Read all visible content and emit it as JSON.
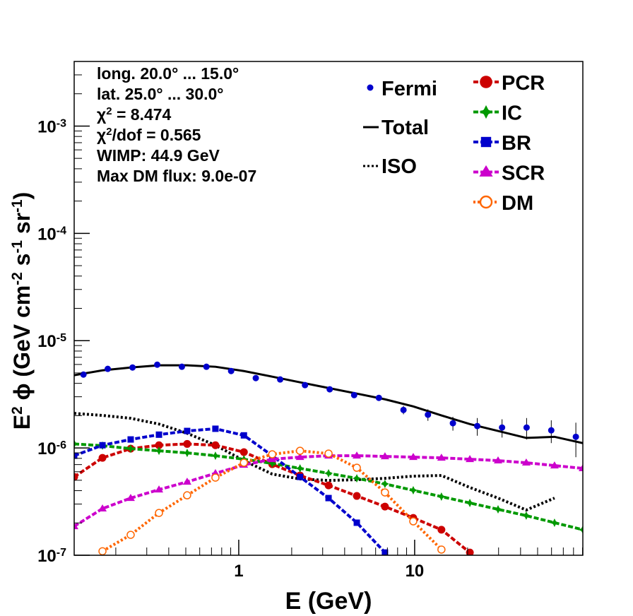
{
  "chart_data": {
    "type": "line",
    "xlabel": "E (GeV)",
    "ylabel": [
      {
        "text": "E"
      },
      {
        "text": "2",
        "sup": true
      },
      {
        "text": " ϕ (GeV cm"
      },
      {
        "text": "-2",
        "sup": true
      },
      {
        "text": " s"
      },
      {
        "text": "-1",
        "sup": true
      },
      {
        "text": " sr"
      },
      {
        "text": "-1",
        "sup": true
      },
      {
        "text": ")"
      }
    ],
    "annotations": [
      [
        {
          "text": "long. 20.0° ... 15.0°"
        }
      ],
      [
        {
          "text": "lat. 25.0° ... 30.0°"
        }
      ],
      [
        {
          "text": "χ"
        },
        {
          "text": "2",
          "sup": true
        },
        {
          "text": " = 8.474"
        }
      ],
      [
        {
          "text": "χ"
        },
        {
          "text": "2",
          "sup": true
        },
        {
          "text": "/dof = 0.565"
        }
      ],
      [
        {
          "text": "WIMP: 44.9 GeV"
        }
      ],
      [
        {
          "text": "Max DM flux: 9.0e-07"
        }
      ]
    ],
    "xlog": true,
    "ylog": true,
    "xlim": [
      0.116,
      90.4
    ],
    "ylim": [
      1e-07,
      0.004
    ],
    "xticks": [
      1,
      10
    ],
    "yticks": [
      {
        "value": 1e-07,
        "label": "10",
        "exponent": "-7"
      },
      {
        "value": 1e-06,
        "label": "10",
        "exponent": "-6"
      },
      {
        "value": 1e-05,
        "label": "10",
        "exponent": "-5"
      },
      {
        "value": 0.0001,
        "label": "10",
        "exponent": "-4"
      },
      {
        "value": 0.001,
        "label": "10",
        "exponent": "-3"
      }
    ],
    "fermi": {
      "name": "Fermi",
      "color": "#0000cc",
      "x": [
        0.131,
        0.18,
        0.249,
        0.344,
        0.475,
        0.655,
        0.905,
        1.25,
        1.72,
        2.38,
        3.29,
        4.53,
        6.26,
        8.64,
        11.9,
        16.5,
        22.7,
        31.4,
        43.3,
        59.8,
        82.5
      ],
      "values": [
        4.83e-06,
        5.46e-06,
        5.62e-06,
        5.97e-06,
        5.71e-06,
        5.71e-06,
        5.21e-06,
        4.48e-06,
        4.35e-06,
        3.85e-06,
        3.52e-06,
        3.11e-06,
        2.93e-06,
        2.26e-06,
        2.04e-06,
        1.7e-06,
        1.6e-06,
        1.55e-06,
        1.55e-06,
        1.46e-06,
        1.27e-06
      ],
      "errors": [
        1e-07,
        1e-07,
        1e-07,
        1e-07,
        1e-07,
        1e-07,
        1e-07,
        1e-07,
        1e-07,
        1e-07,
        1e-07,
        1e-07,
        1.5e-07,
        2e-07,
        2.5e-07,
        2.5e-07,
        3e-07,
        3e-07,
        3.5e-07,
        3.5e-07,
        4.5e-07
      ]
    },
    "x": [
      0.116,
      0.168,
      0.243,
      0.352,
      0.509,
      0.737,
      1.07,
      1.55,
      2.23,
      3.24,
      4.69,
      6.78,
      9.82,
      14.2,
      20.6,
      29.8,
      43.1,
      62.4,
      90.4
    ],
    "series": [
      {
        "name": "Total",
        "color": "#000000",
        "dash": "solid",
        "values": [
          4.76e-06,
          5.29e-06,
          5.62e-06,
          5.89e-06,
          5.89e-06,
          5.71e-06,
          5.21e-06,
          4.62e-06,
          4.09e-06,
          3.62e-06,
          3.21e-06,
          2.84e-06,
          2.44e-06,
          2.01e-06,
          1.67e-06,
          1.44e-06,
          1.24e-06,
          1.27e-06,
          1.11e-06
        ]
      },
      {
        "name": "ISO",
        "color": "#000000",
        "dash": "dotted",
        "values": [
          2.1e-06,
          2.01e-06,
          1.89e-06,
          1.67e-06,
          1.37e-06,
          1.06e-06,
          7.62e-07,
          5.71e-07,
          5.14e-07,
          4.98e-07,
          5.06e-07,
          5.21e-07,
          5.46e-07,
          5.54e-07,
          4.28e-07,
          3.41e-07,
          2.64e-07,
          3.41e-07,
          null
        ]
      },
      {
        "name": "PCR",
        "color": "#cc0000",
        "dash": "dashed",
        "marker": "circle",
        "values": [
          5.37e-07,
          8.09e-07,
          9.85e-07,
          1.06e-06,
          1.09e-06,
          1.06e-06,
          9.14e-07,
          7.06e-07,
          5.54e-07,
          4.48e-07,
          3.57e-07,
          2.84e-07,
          2.23e-07,
          1.73e-07,
          1.06e-07,
          null,
          null,
          null,
          null
        ]
      },
      {
        "name": "IC",
        "color": "#009900",
        "dash": "dashed",
        "marker": "star",
        "values": [
          1.09e-06,
          1.05e-06,
          9.85e-07,
          9.41e-07,
          8.99e-07,
          8.47e-07,
          7.85e-07,
          7.17e-07,
          6.45e-07,
          5.8e-07,
          5.21e-07,
          4.62e-07,
          4.03e-07,
          3.52e-07,
          3.07e-07,
          2.68e-07,
          2.34e-07,
          2.01e-07,
          1.73e-07
        ]
      },
      {
        "name": "BR",
        "color": "#0000cc",
        "dash": "dashed",
        "marker": "square",
        "values": [
          8.47e-07,
          1.06e-06,
          1.2e-06,
          1.33e-06,
          1.44e-06,
          1.51e-06,
          1.31e-06,
          8.47e-07,
          5.37e-07,
          3.41e-07,
          2.01e-07,
          1.06e-07,
          null,
          null,
          null,
          null,
          null,
          null,
          null
        ]
      },
      {
        "name": "SCR",
        "color": "#cc00cc",
        "dash": "dashed",
        "marker": "triangle",
        "values": [
          1.86e-07,
          2.72e-07,
          3.41e-07,
          4.09e-07,
          4.83e-07,
          5.8e-07,
          6.95e-07,
          7.85e-07,
          8.21e-07,
          8.47e-07,
          8.47e-07,
          8.34e-07,
          8.21e-07,
          8.09e-07,
          7.85e-07,
          7.62e-07,
          7.28e-07,
          6.85e-07,
          6.45e-07
        ]
      },
      {
        "name": "DM",
        "color": "#ff6600",
        "dash": "dotted",
        "marker": "open-circle",
        "values": [
          null,
          1.09e-07,
          1.55e-07,
          2.48e-07,
          3.62e-07,
          5.29e-07,
          7.28e-07,
          8.73e-07,
          9.41e-07,
          8.86e-07,
          6.54e-07,
          3.85e-07,
          2.07e-07,
          1.13e-07,
          null,
          null,
          null,
          null,
          null
        ]
      }
    ]
  }
}
